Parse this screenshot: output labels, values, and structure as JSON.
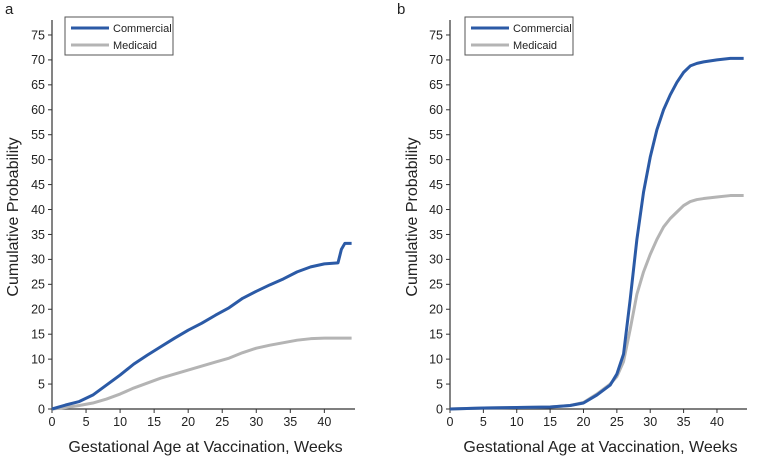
{
  "chart_data": [
    {
      "type": "line",
      "panel_label": "a",
      "xlabel": "Gestational Age at Vaccination, Weeks",
      "ylabel": "Cumulative Probability",
      "xlim": [
        0,
        44.5
      ],
      "ylim": [
        0,
        77
      ],
      "xticks": [
        0,
        5,
        10,
        15,
        20,
        25,
        30,
        35,
        40
      ],
      "yticks": [
        0,
        5,
        10,
        15,
        20,
        25,
        30,
        35,
        40,
        45,
        50,
        55,
        60,
        65,
        70,
        75
      ],
      "grid": false,
      "legend_position": "top-left",
      "series": [
        {
          "name": "Commercial",
          "color": "#2b5aa6",
          "x": [
            0,
            2,
            4,
            6,
            8,
            10,
            12,
            14,
            16,
            18,
            20,
            22,
            24,
            26,
            28,
            30,
            32,
            34,
            36,
            38,
            40,
            42,
            42.5,
            43,
            44
          ],
          "y": [
            0,
            0.8,
            1.5,
            2.8,
            4.8,
            6.8,
            9.0,
            10.8,
            12.5,
            14.2,
            15.8,
            17.2,
            18.8,
            20.3,
            22.2,
            23.6,
            24.9,
            26.1,
            27.5,
            28.5,
            29.1,
            29.3,
            32.0,
            33.2,
            33.2
          ]
        },
        {
          "name": "Medicaid",
          "color": "#b4b4b4",
          "x": [
            0,
            2,
            4,
            6,
            8,
            10,
            12,
            14,
            16,
            18,
            20,
            22,
            24,
            26,
            28,
            30,
            32,
            34,
            36,
            38,
            40,
            42,
            44
          ],
          "y": [
            0,
            0.3,
            0.7,
            1.2,
            2.0,
            3.0,
            4.2,
            5.2,
            6.2,
            7.0,
            7.8,
            8.6,
            9.4,
            10.2,
            11.3,
            12.2,
            12.8,
            13.3,
            13.8,
            14.1,
            14.2,
            14.2,
            14.2
          ]
        }
      ]
    },
    {
      "type": "line",
      "panel_label": "b",
      "xlabel": "Gestational Age at Vaccination, Weeks",
      "ylabel": "Cumulative Probability",
      "xlim": [
        0,
        44.5
      ],
      "ylim": [
        0,
        77
      ],
      "xticks": [
        0,
        5,
        10,
        15,
        20,
        25,
        30,
        35,
        40
      ],
      "yticks": [
        0,
        5,
        10,
        15,
        20,
        25,
        30,
        35,
        40,
        45,
        50,
        55,
        60,
        65,
        70,
        75
      ],
      "grid": false,
      "legend_position": "top-left",
      "series": [
        {
          "name": "Commercial",
          "color": "#2b5aa6",
          "x": [
            0,
            5,
            10,
            15,
            18,
            20,
            22,
            24,
            25,
            26,
            27,
            28,
            29,
            30,
            31,
            32,
            33,
            34,
            35,
            36,
            37,
            38,
            40,
            42,
            44
          ],
          "y": [
            0,
            0.2,
            0.3,
            0.4,
            0.7,
            1.2,
            2.8,
            4.8,
            7.0,
            11.0,
            22.0,
            34.0,
            43.5,
            50.5,
            56.0,
            60.0,
            63.0,
            65.5,
            67.5,
            68.8,
            69.3,
            69.6,
            70.0,
            70.3,
            70.3
          ]
        },
        {
          "name": "Medicaid",
          "color": "#b4b4b4",
          "x": [
            0,
            5,
            10,
            15,
            18,
            20,
            22,
            24,
            25,
            26,
            27,
            28,
            29,
            30,
            31,
            32,
            33,
            34,
            35,
            36,
            37,
            38,
            40,
            42,
            44
          ],
          "y": [
            0,
            0.2,
            0.3,
            0.4,
            0.7,
            1.3,
            3.0,
            5.0,
            6.5,
            9.5,
            16.0,
            23.0,
            27.5,
            31.0,
            34.0,
            36.5,
            38.2,
            39.5,
            40.8,
            41.6,
            42.0,
            42.2,
            42.5,
            42.8,
            42.8
          ]
        }
      ]
    }
  ]
}
